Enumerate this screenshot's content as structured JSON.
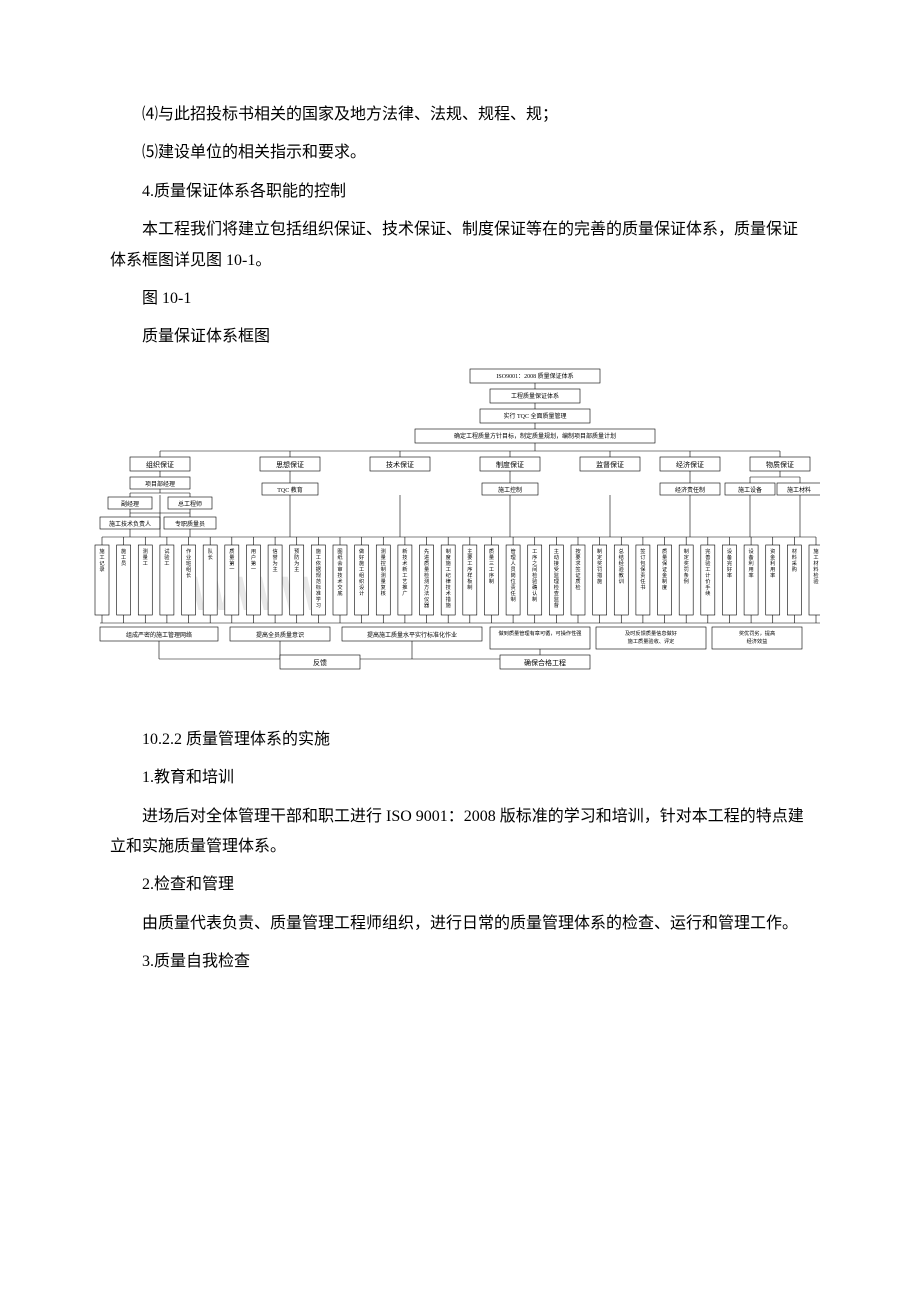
{
  "paragraphs": {
    "p1": "⑷与此招投标书相关的国家及地方法律、法规、规程、规；",
    "p2": "⑸建设单位的相关指示和要求。",
    "p3": "4.质量保证体系各职能的控制",
    "p4": "本工程我们将建立包括组织保证、技术保证、制度保证等在的完善的质量保证体系，质量保证体系框图详见图 10-1。",
    "p5": "图 10-1",
    "p6": "质量保证体系框图",
    "p7": "10.2.2 质量管理体系的实施",
    "p8": "1.教育和培训",
    "p9": "进场后对全体管理干部和职工进行 ISO 9001：2008 版标准的学习和培训，针对本工程的特点建立和实施质量管理体系。",
    "p10": "2.检查和管理",
    "p11": "由质量代表负责、质量管理工程师组织，进行日常的质量管理体系的检查、运行和管理工作。",
    "p12": "3.质量自我检查"
  },
  "diagram": {
    "top": {
      "n1": "ISO9001：2008 质量保证体系",
      "n2": "工程质量保证体系",
      "n3": "实行 TQC 全面质量管理",
      "n4": "确定工程质量方针目标，制定质量规划，编制项目部质量计划"
    },
    "branches": [
      "组织保证",
      "思想保证",
      "技术保证",
      "制度保证",
      "监督保证",
      "经济保证",
      "物质保证"
    ],
    "org": {
      "n1": "项目部经理",
      "n2": "副经理",
      "n3": "总工程师",
      "n4": "施工技术负责人",
      "n5": "专职质量员"
    },
    "thought": {
      "n1": "TQC 教育"
    },
    "control": {
      "n1": "施工控制"
    },
    "economy": {
      "n1": "经济责任制"
    },
    "material": {
      "n1": "施工设备",
      "n2": "施工材料"
    },
    "leaves": [
      "施工记录",
      "施工员",
      "测量工",
      "试验工",
      "作业班组长",
      "队长",
      "质量第一",
      "用户第一",
      "信誉为主",
      "预防为主",
      "施工依据规范标准学习",
      "图纸会审技术交底",
      "做好施工组织设计",
      "测量控制测量复核",
      "新技术新工艺推广",
      "先进质量检测方法仪器",
      "制度施工纪律技术措施",
      "主要工序样板制",
      "质量三工序制",
      "管理人员岗位责任制",
      "工序之间检验确认制",
      "主动接受监理检查监督",
      "按要求签证质检",
      "制定奖罚措施",
      "总结经验教训",
      "签订包保责任书",
      "质量保证金制度",
      "制定奖罚条例",
      "完善验工计价手续",
      "设备完好率",
      "设备利用率",
      "资金利用率",
      "材料采购",
      "施工材料检验"
    ],
    "summaries": [
      "组成严密的施工管理网络",
      "提高全员质量意识",
      "提高施工质量水平实行标准化作业",
      "做到质量管理有章可循，可操作性强",
      "及时反馈质量信息做好施工质量验收、评定",
      "奖优罚劣，提高经济效益",
      "保证施工正常运转提高效率"
    ],
    "bottom": {
      "n1": "反馈",
      "n2": "确保合格工程"
    },
    "watermark": "WWW"
  },
  "style": {
    "bg": "#ffffff",
    "stroke": "#000000",
    "text": "#000000",
    "wm": "#e8e8e8"
  }
}
